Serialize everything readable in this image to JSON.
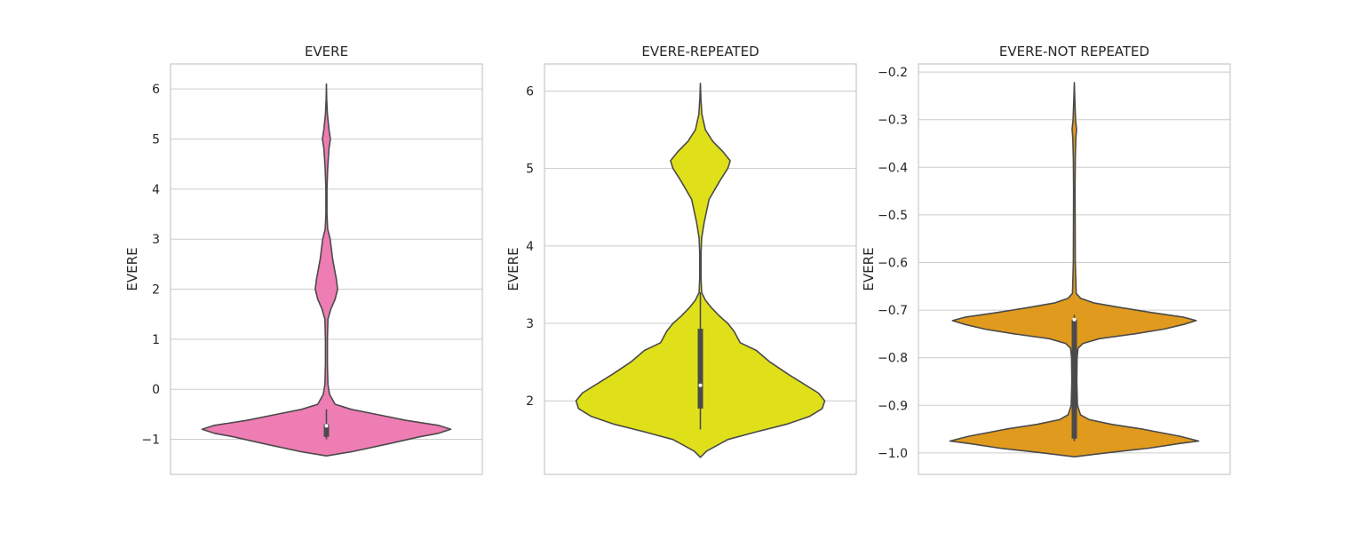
{
  "chart_data": [
    {
      "type": "violin",
      "title": "EVERE",
      "ylabel": "EVERE",
      "xlabel": "",
      "color": "#ee7db4",
      "ylim": [
        -1.7,
        6.5
      ],
      "yticks": [
        -1,
        0,
        1,
        2,
        3,
        4,
        5,
        6
      ],
      "yticklabels": [
        "−1",
        "0",
        "1",
        "2",
        "3",
        "4",
        "5",
        "6"
      ],
      "grid": true,
      "density": [
        [
          -1.33,
          0.0
        ],
        [
          -1.25,
          0.2
        ],
        [
          -1.1,
          0.48
        ],
        [
          -0.95,
          0.75
        ],
        [
          -0.88,
          0.9
        ],
        [
          -0.8,
          1.0
        ],
        [
          -0.72,
          0.9
        ],
        [
          -0.62,
          0.64
        ],
        [
          -0.5,
          0.4
        ],
        [
          -0.4,
          0.2
        ],
        [
          -0.3,
          0.07
        ],
        [
          -0.1,
          0.025
        ],
        [
          0.1,
          0.012
        ],
        [
          0.5,
          0.008
        ],
        [
          1.0,
          0.008
        ],
        [
          1.4,
          0.012
        ],
        [
          1.6,
          0.035
        ],
        [
          1.8,
          0.07
        ],
        [
          2.0,
          0.09
        ],
        [
          2.2,
          0.08
        ],
        [
          2.4,
          0.065
        ],
        [
          2.6,
          0.05
        ],
        [
          2.8,
          0.04
        ],
        [
          3.0,
          0.03
        ],
        [
          3.2,
          0.01
        ],
        [
          3.5,
          0.004
        ],
        [
          4.0,
          0.004
        ],
        [
          4.4,
          0.01
        ],
        [
          4.8,
          0.02
        ],
        [
          5.0,
          0.032
        ],
        [
          5.2,
          0.02
        ],
        [
          5.5,
          0.008
        ],
        [
          5.8,
          0.002
        ],
        [
          6.1,
          0.0
        ]
      ],
      "box": {
        "q1": -0.95,
        "median": -0.73,
        "q3": -0.7,
        "whisker_low": -1.0,
        "whisker_high": -0.4
      }
    },
    {
      "type": "violin",
      "title": "EVERE-REPEATED",
      "ylabel": "EVERE",
      "xlabel": "",
      "color": "#e0e01a",
      "ylim": [
        1.05,
        6.35
      ],
      "yticks": [
        2,
        3,
        4,
        5,
        6
      ],
      "yticklabels": [
        "2",
        "3",
        "4",
        "5",
        "6"
      ],
      "grid": true,
      "density": [
        [
          1.27,
          0.0
        ],
        [
          1.35,
          0.05
        ],
        [
          1.5,
          0.22
        ],
        [
          1.6,
          0.45
        ],
        [
          1.7,
          0.7
        ],
        [
          1.8,
          0.88
        ],
        [
          1.9,
          0.98
        ],
        [
          2.0,
          1.0
        ],
        [
          2.1,
          0.95
        ],
        [
          2.2,
          0.85
        ],
        [
          2.35,
          0.7
        ],
        [
          2.5,
          0.56
        ],
        [
          2.65,
          0.45
        ],
        [
          2.75,
          0.32
        ],
        [
          2.9,
          0.27
        ],
        [
          3.0,
          0.22
        ],
        [
          3.1,
          0.15
        ],
        [
          3.2,
          0.09
        ],
        [
          3.3,
          0.04
        ],
        [
          3.4,
          0.01
        ],
        [
          3.6,
          0.005
        ],
        [
          3.9,
          0.005
        ],
        [
          4.1,
          0.01
        ],
        [
          4.3,
          0.03
        ],
        [
          4.6,
          0.07
        ],
        [
          4.85,
          0.16
        ],
        [
          5.0,
          0.22
        ],
        [
          5.1,
          0.24
        ],
        [
          5.22,
          0.18
        ],
        [
          5.35,
          0.1
        ],
        [
          5.5,
          0.04
        ],
        [
          5.7,
          0.012
        ],
        [
          5.9,
          0.004
        ],
        [
          6.1,
          0.0
        ]
      ],
      "box": {
        "q1": 1.9,
        "median": 2.2,
        "q3": 2.93,
        "whisker_low": 1.63,
        "whisker_high": 3.4
      }
    },
    {
      "type": "violin",
      "title": "EVERE-NOT REPEATED",
      "ylabel": "EVERE",
      "xlabel": "",
      "color": "#e09a1e",
      "ylim": [
        -1.045,
        -0.183
      ],
      "yticks": [
        -1.0,
        -0.9,
        -0.8,
        -0.7,
        -0.6,
        -0.5,
        -0.4,
        -0.3,
        -0.2
      ],
      "yticklabels": [
        "−1.0",
        "−0.9",
        "−0.8",
        "−0.7",
        "−0.6",
        "−0.5",
        "−0.4",
        "−0.3",
        "−0.2"
      ],
      "grid": true,
      "density": [
        [
          -1.008,
          0.0
        ],
        [
          -1.0,
          0.25
        ],
        [
          -0.99,
          0.6
        ],
        [
          -0.98,
          0.85
        ],
        [
          -0.975,
          1.0
        ],
        [
          -0.965,
          0.85
        ],
        [
          -0.95,
          0.55
        ],
        [
          -0.94,
          0.3
        ],
        [
          -0.93,
          0.12
        ],
        [
          -0.92,
          0.05
        ],
        [
          -0.9,
          0.025
        ],
        [
          -0.85,
          0.02
        ],
        [
          -0.8,
          0.022
        ],
        [
          -0.78,
          0.03
        ],
        [
          -0.77,
          0.07
        ],
        [
          -0.76,
          0.2
        ],
        [
          -0.75,
          0.48
        ],
        [
          -0.74,
          0.72
        ],
        [
          -0.73,
          0.88
        ],
        [
          -0.722,
          0.98
        ],
        [
          -0.715,
          0.88
        ],
        [
          -0.705,
          0.62
        ],
        [
          -0.695,
          0.38
        ],
        [
          -0.685,
          0.16
        ],
        [
          -0.675,
          0.05
        ],
        [
          -0.665,
          0.015
        ],
        [
          -0.6,
          0.008
        ],
        [
          -0.45,
          0.006
        ],
        [
          -0.38,
          0.008
        ],
        [
          -0.34,
          0.012
        ],
        [
          -0.32,
          0.018
        ],
        [
          -0.3,
          0.01
        ],
        [
          -0.26,
          0.004
        ],
        [
          -0.222,
          0.0
        ]
      ],
      "box": {
        "q1": -0.97,
        "median": -0.72,
        "q3": -0.72,
        "whisker_low": -0.975,
        "whisker_high": -0.71
      }
    }
  ]
}
